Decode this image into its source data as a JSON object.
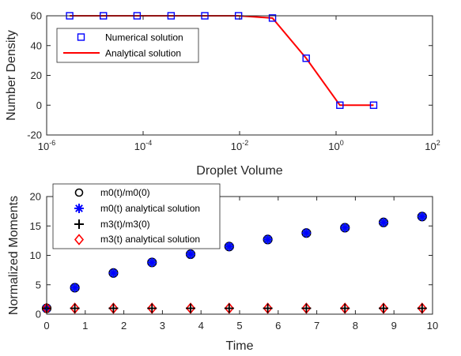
{
  "chart_data": [
    {
      "type": "line",
      "xscale": "log",
      "xlabel": "Droplet Volume",
      "ylabel": "Number Density",
      "xlim": [
        1e-06,
        100
      ],
      "ylim": [
        -20,
        60
      ],
      "xticks": [
        {
          "base": "10",
          "exp": "-6",
          "value": 1e-06
        },
        {
          "base": "10",
          "exp": "-4",
          "value": 0.0001
        },
        {
          "base": "10",
          "exp": "-2",
          "value": 0.01
        },
        {
          "base": "10",
          "exp": "0",
          "value": 1
        },
        {
          "base": "10",
          "exp": "2",
          "value": 100
        }
      ],
      "yticks": [
        "-20",
        "0",
        "20",
        "40",
        "60"
      ],
      "legend_position": "top-left",
      "series": [
        {
          "name": "Numerical solution",
          "style": "square-marker",
          "color": "#0000ff",
          "x": [
            3e-06,
            1.5e-05,
            7.5e-05,
            0.00038,
            0.0019,
            0.0095,
            0.048,
            0.24,
            1.2,
            6.0
          ],
          "y": [
            60,
            60,
            60,
            60,
            60,
            60,
            58.5,
            31.5,
            0,
            0
          ]
        },
        {
          "name": "Analytical solution",
          "style": "line",
          "color": "#ff0000",
          "x": [
            3e-06,
            1.5e-05,
            7.5e-05,
            0.00038,
            0.0019,
            0.0095,
            0.048,
            0.24,
            1.2,
            6.0
          ],
          "y": [
            60,
            60,
            60,
            60,
            60,
            60,
            58.5,
            31.5,
            0,
            0
          ]
        }
      ]
    },
    {
      "type": "scatter",
      "xlabel": "Time",
      "ylabel": "Normalized Moments",
      "xlim": [
        0,
        10
      ],
      "ylim": [
        0,
        20
      ],
      "xticks": [
        "0",
        "1",
        "2",
        "3",
        "4",
        "5",
        "6",
        "7",
        "8",
        "9",
        "10"
      ],
      "yticks": [
        "0",
        "5",
        "10",
        "15",
        "20"
      ],
      "legend_position": "top-left",
      "x": [
        0,
        0.73,
        1.73,
        2.73,
        3.73,
        4.73,
        5.73,
        6.73,
        7.73,
        8.73,
        9.73
      ],
      "series": [
        {
          "name": "m0(t)/m0(0)",
          "marker": "circle",
          "color": "#000000",
          "values": [
            1.0,
            4.5,
            7.0,
            8.8,
            10.2,
            11.5,
            12.7,
            13.8,
            14.7,
            15.6,
            16.6
          ]
        },
        {
          "name": "m0(t) analytical solution",
          "marker": "asterisk",
          "color": "#0000ff",
          "values": [
            1.0,
            4.5,
            7.0,
            8.8,
            10.2,
            11.5,
            12.7,
            13.8,
            14.7,
            15.6,
            16.6
          ]
        },
        {
          "name": "m3(t)/m3(0)",
          "marker": "plus",
          "color": "#000000",
          "values": [
            1,
            1,
            1,
            1,
            1,
            1,
            1,
            1,
            1,
            1,
            1
          ]
        },
        {
          "name": "m3(t) analytical solution",
          "marker": "diamond",
          "color": "#ff0000",
          "values": [
            1,
            1,
            1,
            1,
            1,
            1,
            1,
            1,
            1,
            1,
            1
          ]
        }
      ]
    }
  ]
}
